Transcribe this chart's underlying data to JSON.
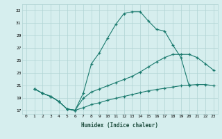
{
  "xlabel": "Humidex (Indice chaleur)",
  "bg_color": "#d6eeee",
  "line_color": "#1a7a6e",
  "grid_color": "#b0d4d4",
  "xlim": [
    -0.5,
    23.5
  ],
  "ylim": [
    16.5,
    34.0
  ],
  "yticks": [
    17,
    19,
    21,
    23,
    25,
    27,
    29,
    31,
    33
  ],
  "xticks": [
    0,
    1,
    2,
    3,
    4,
    5,
    6,
    7,
    8,
    9,
    10,
    11,
    12,
    13,
    14,
    15,
    16,
    17,
    18,
    19,
    20,
    21,
    22,
    23
  ],
  "curve1_x": [
    1,
    2,
    3,
    4,
    5,
    6,
    7,
    8,
    9,
    10,
    11,
    12,
    13,
    14,
    15,
    16,
    17,
    18,
    19,
    20
  ],
  "curve1_y": [
    20.5,
    19.8,
    19.3,
    18.5,
    17.3,
    17.1,
    19.8,
    24.5,
    26.3,
    28.6,
    30.8,
    32.5,
    32.8,
    32.8,
    31.3,
    30.0,
    29.7,
    27.5,
    25.5,
    21.0
  ],
  "curve2_x": [
    1,
    2,
    3,
    4,
    5,
    6,
    7,
    8,
    9,
    10,
    11,
    12,
    13,
    14,
    15,
    16,
    17,
    18,
    19,
    20,
    21,
    22,
    23
  ],
  "curve2_y": [
    20.5,
    19.8,
    19.3,
    18.5,
    17.3,
    17.1,
    19.0,
    20.0,
    20.5,
    21.0,
    21.5,
    22.0,
    22.5,
    23.2,
    24.0,
    24.8,
    25.5,
    26.0,
    26.0,
    26.0,
    25.5,
    24.5,
    23.5
  ],
  "curve3_x": [
    1,
    2,
    3,
    4,
    5,
    6,
    7,
    8,
    9,
    10,
    11,
    12,
    13,
    14,
    15,
    16,
    17,
    18,
    19,
    20,
    21,
    22,
    23
  ],
  "curve3_y": [
    20.5,
    19.8,
    19.3,
    18.5,
    17.3,
    17.1,
    17.5,
    18.0,
    18.3,
    18.7,
    19.0,
    19.3,
    19.6,
    19.9,
    20.2,
    20.4,
    20.6,
    20.8,
    21.0,
    21.1,
    21.2,
    21.2,
    21.0
  ]
}
